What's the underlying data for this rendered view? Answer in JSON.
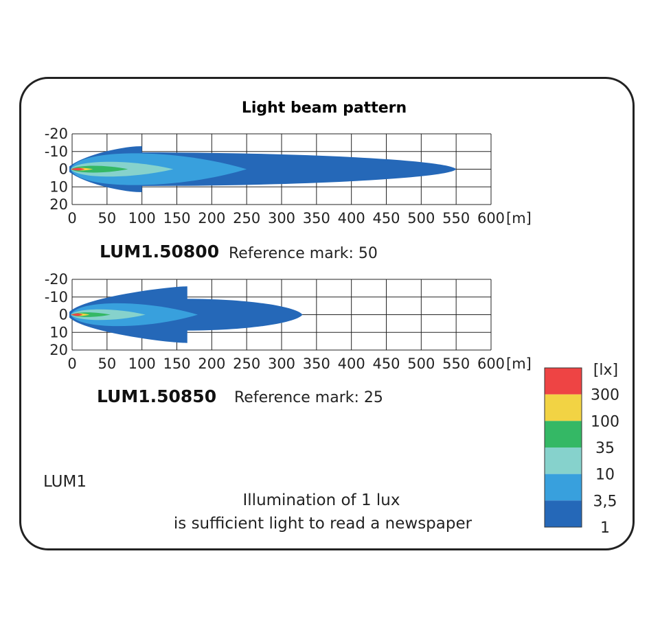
{
  "chart_data": {
    "type": "area",
    "title": "Light beam pattern",
    "caption_lines": [
      "Illumination of 1 lux",
      "is sufficient light to read a newspaper"
    ],
    "family_label": "LUM1",
    "unit_x": "[m]",
    "x_ticks": [
      "0",
      "50",
      "100",
      "150",
      "200",
      "250",
      "300",
      "350",
      "400",
      "450",
      "500",
      "550",
      "600"
    ],
    "y_ticks": [
      "-20",
      "-10",
      "0",
      "10",
      "20"
    ],
    "xlim": [
      0,
      600
    ],
    "ylim": [
      -20,
      20
    ],
    "grid": true,
    "legend": {
      "unit": "[lx]",
      "position": "bottom-right",
      "colors": [
        "#ee4444",
        "#f2d344",
        "#34b865",
        "#86d2cc",
        "#38a0dd",
        "#2568b8"
      ],
      "labels": [
        "300",
        "100",
        "35",
        "10",
        "3,5",
        "1"
      ]
    },
    "panels": [
      {
        "model": "LUM1.50800",
        "reference": "Reference mark: 50",
        "isolux_reach_m": {
          "1": 550,
          "3,5": 250,
          "10": 145,
          "35": 80,
          "100": 30,
          "300": 18
        }
      },
      {
        "model": "LUM1.50850",
        "reference": "Reference mark: 25",
        "isolux_reach_m": {
          "1": 330,
          "3,5": 180,
          "10": 105,
          "35": 55,
          "100": 25,
          "300": 15
        }
      }
    ]
  }
}
